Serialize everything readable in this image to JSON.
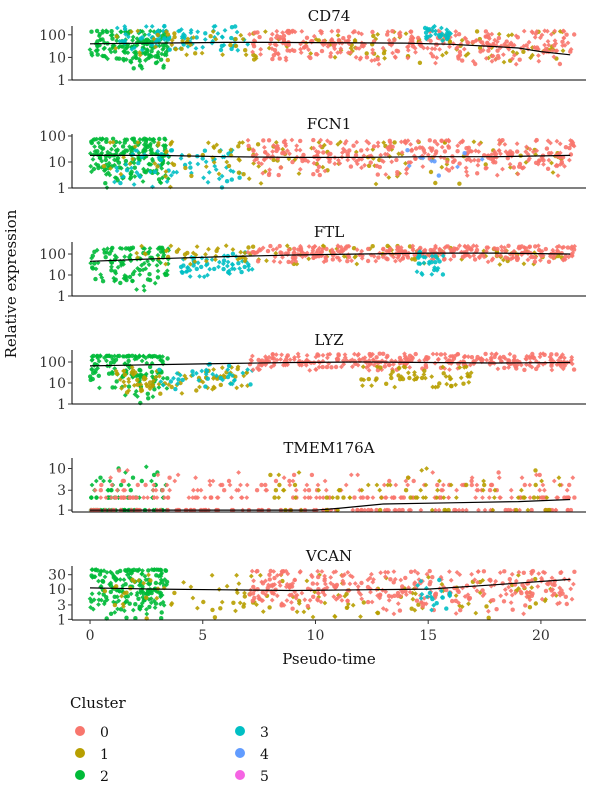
{
  "chart_data": {
    "type": "scatter",
    "xlabel": "Pseudo-time",
    "ylabel": "Relative expression",
    "xlim": [
      -0.8,
      22
    ],
    "x_ticks": [
      0,
      5,
      10,
      15,
      20
    ],
    "y_scale": "log",
    "grid": false,
    "legend": {
      "title": "Cluster",
      "placement": "bottom-left",
      "entries": [
        {
          "name": "0",
          "color": "#F8766D"
        },
        {
          "name": "1",
          "color": "#B79F00"
        },
        {
          "name": "2",
          "color": "#00BA38"
        },
        {
          "name": "3",
          "color": "#00BFC4"
        },
        {
          "name": "4",
          "color": "#619CFF"
        },
        {
          "name": "5",
          "color": "#F564E3"
        }
      ]
    },
    "panels": [
      {
        "title": "CD74",
        "ylim": [
          1,
          200
        ],
        "y_ticks": [
          1,
          10,
          100
        ],
        "trend": {
          "x": [
            0,
            2,
            4,
            6,
            8,
            10,
            12,
            14,
            16,
            18,
            19,
            20,
            21.3
          ],
          "y": [
            40,
            42,
            44,
            46,
            46,
            45,
            44,
            43,
            38,
            30,
            26,
            18,
            13
          ]
        },
        "clusters": [
          {
            "name": "2",
            "x": [
              0,
              3.5
            ],
            "y": [
              3,
              150
            ],
            "center": 30,
            "n": 170
          },
          {
            "name": "3",
            "x": [
              1.2,
              7
            ],
            "y": [
              20,
              250
            ],
            "center": 80,
            "n": 90
          },
          {
            "name": "1",
            "x": [
              1.0,
              21
            ],
            "y": [
              5,
              150
            ],
            "center": 40,
            "n": 130
          },
          {
            "name": "0",
            "x": [
              7,
              21.5
            ],
            "y": [
              5,
              150
            ],
            "center": 40,
            "n": 320
          },
          {
            "name": "3",
            "x": [
              14.8,
              16
            ],
            "y": [
              50,
              250
            ],
            "center": 120,
            "n": 30
          }
        ]
      },
      {
        "title": "FCN1",
        "ylim": [
          1,
          100
        ],
        "y_ticks": [
          1,
          10,
          100
        ],
        "trend": {
          "x": [
            0,
            3,
            6,
            9,
            12,
            15,
            18,
            21.3
          ],
          "y": [
            18,
            18,
            16,
            15,
            15,
            16,
            16,
            18
          ]
        },
        "clusters": [
          {
            "name": "2",
            "x": [
              0,
              3.5
            ],
            "y": [
              1,
              80
            ],
            "center": 18,
            "n": 200
          },
          {
            "name": "3",
            "x": [
              1.0,
              7
            ],
            "y": [
              1,
              30
            ],
            "center": 6,
            "n": 70
          },
          {
            "name": "1",
            "x": [
              0.5,
              21
            ],
            "y": [
              1,
              60
            ],
            "center": 14,
            "n": 130
          },
          {
            "name": "0",
            "x": [
              7,
              21.5
            ],
            "y": [
              3,
              70
            ],
            "center": 20,
            "n": 320
          },
          {
            "name": "4",
            "x": [
              14,
              18
            ],
            "y": [
              2,
              30
            ],
            "center": 8,
            "n": 10
          }
        ]
      },
      {
        "title": "FTL",
        "ylim": [
          1,
          300
        ],
        "y_ticks": [
          1,
          10,
          100
        ],
        "trend": {
          "x": [
            0,
            3,
            6,
            9,
            12,
            15,
            18,
            21.3
          ],
          "y": [
            45,
            60,
            75,
            90,
            100,
            110,
            110,
            100
          ]
        },
        "clusters": [
          {
            "name": "2",
            "x": [
              0,
              3.5
            ],
            "y": [
              1,
              200
            ],
            "center": 50,
            "n": 120
          },
          {
            "name": "3",
            "x": [
              4,
              7.2
            ],
            "y": [
              8,
              120
            ],
            "center": 30,
            "n": 60
          },
          {
            "name": "1",
            "x": [
              2,
              21
            ],
            "y": [
              30,
              250
            ],
            "center": 100,
            "n": 110
          },
          {
            "name": "0",
            "x": [
              7,
              21.5
            ],
            "y": [
              40,
              250
            ],
            "center": 110,
            "n": 320
          },
          {
            "name": "3",
            "x": [
              14.5,
              16
            ],
            "y": [
              10,
              150
            ],
            "center": 40,
            "n": 30
          }
        ]
      },
      {
        "title": "LYZ",
        "ylim": [
          1,
          300
        ],
        "y_ticks": [
          1,
          10,
          100
        ],
        "trend": {
          "x": [
            0,
            3,
            6,
            9,
            12,
            15,
            18,
            21.3
          ],
          "y": [
            65,
            75,
            85,
            95,
            100,
            95,
            90,
            95
          ]
        },
        "clusters": [
          {
            "name": "2",
            "x": [
              0,
              3.5
            ],
            "y": [
              1,
              200
            ],
            "center": 60,
            "n": 150
          },
          {
            "name": "1",
            "x": [
              1.0,
              7
            ],
            "y": [
              3,
              60
            ],
            "center": 12,
            "n": 90
          },
          {
            "name": "3",
            "x": [
              3,
              7.2
            ],
            "y": [
              5,
              80
            ],
            "center": 25,
            "n": 40
          },
          {
            "name": "0",
            "x": [
              7,
              21.5
            ],
            "y": [
              40,
              250
            ],
            "center": 110,
            "n": 320
          },
          {
            "name": "1",
            "x": [
              12,
              17
            ],
            "y": [
              6,
              60
            ],
            "center": 20,
            "n": 60
          }
        ]
      },
      {
        "title": "TMEM176A",
        "ylim": [
          0.9,
          16
        ],
        "y_ticks": [
          1,
          3,
          10
        ],
        "trend": {
          "x": [
            0,
            10,
            11,
            13,
            16,
            19,
            21.3
          ],
          "y": [
            1.0,
            1.0,
            1.1,
            1.4,
            1.5,
            1.6,
            1.8
          ]
        },
        "clusters": [
          {
            "name": "2",
            "x": [
              0,
              3.5
            ],
            "y": [
              1,
              15
            ],
            "center": 2,
            "n": 90
          },
          {
            "name": "0",
            "x": [
              0,
              21.5
            ],
            "y": [
              1,
              12
            ],
            "center": 2,
            "n": 320
          },
          {
            "name": "1",
            "x": [
              8,
              21
            ],
            "y": [
              1,
              10
            ],
            "center": 2.5,
            "n": 80
          }
        ]
      },
      {
        "title": "VCAN",
        "ylim": [
          0.95,
          50
        ],
        "y_ticks": [
          1,
          3,
          10,
          30
        ],
        "trend": {
          "x": [
            0,
            3,
            6,
            9,
            12,
            15,
            18,
            21.3
          ],
          "y": [
            11,
            10,
            9.5,
            9,
            9.5,
            10,
            14,
            21
          ]
        },
        "clusters": [
          {
            "name": "2",
            "x": [
              0,
              3.5
            ],
            "y": [
              1,
              45
            ],
            "center": 10,
            "n": 200
          },
          {
            "name": "1",
            "x": [
              0.5,
              21
            ],
            "y": [
              1,
              30
            ],
            "center": 6,
            "n": 130
          },
          {
            "name": "0",
            "x": [
              7,
              21.5
            ],
            "y": [
              1.5,
              40
            ],
            "center": 12,
            "n": 340
          },
          {
            "name": "3",
            "x": [
              14.5,
              16
            ],
            "y": [
              2,
              20
            ],
            "center": 6,
            "n": 20
          }
        ]
      }
    ]
  }
}
